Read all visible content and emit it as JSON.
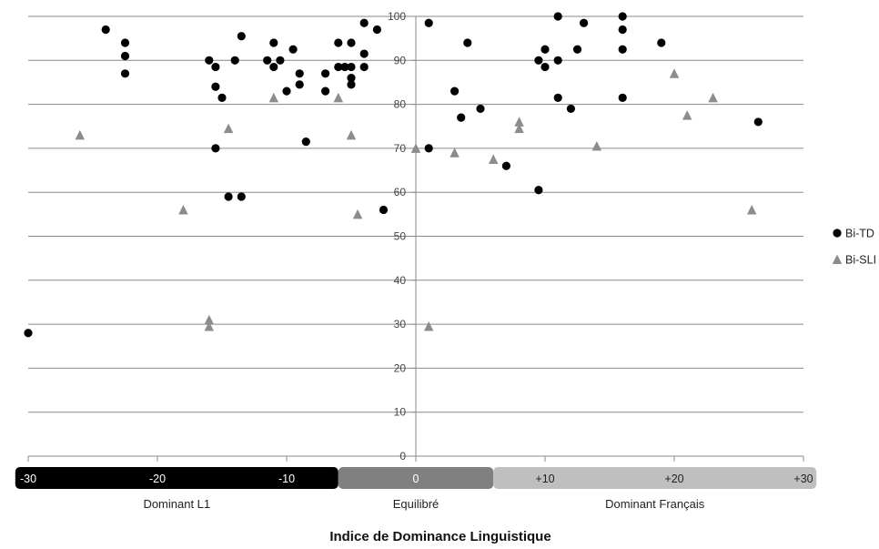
{
  "chart_data": {
    "type": "scatter",
    "title": "",
    "xlabel": "Indice de Dominance Linguistique",
    "ylabel": "",
    "xlim": [
      -30,
      30
    ],
    "ylim": [
      0,
      100
    ],
    "grid": true,
    "legend_position": "right",
    "x_ticks": [
      "-30",
      "-20",
      "-10",
      "0",
      "+10",
      "+20",
      "+30"
    ],
    "y_ticks": [
      "0",
      "10",
      "20",
      "30",
      "40",
      "50",
      "60",
      "70",
      "80",
      "90",
      "100"
    ],
    "zones": [
      {
        "label": "Dominant L1",
        "from": -31,
        "to": -6,
        "color": "#000000"
      },
      {
        "label": "Equilibré",
        "from": -6,
        "to": 6,
        "color": "#808080"
      },
      {
        "label": "Dominant Français",
        "from": 6,
        "to": 31,
        "color": "#bfbfbf"
      }
    ],
    "series": [
      {
        "name": "Bi-TD",
        "marker": "circle",
        "color": "#000000",
        "points": [
          [
            -30,
            28
          ],
          [
            -24,
            97
          ],
          [
            -22.5,
            94
          ],
          [
            -22.5,
            91
          ],
          [
            -22.5,
            87
          ],
          [
            -16,
            90
          ],
          [
            -15.5,
            88.5
          ],
          [
            -15.5,
            84
          ],
          [
            -15,
            81.5
          ],
          [
            -15.5,
            70
          ],
          [
            -14.5,
            59
          ],
          [
            -14,
            90
          ],
          [
            -13.5,
            95.5
          ],
          [
            -13.5,
            59
          ],
          [
            -11.5,
            90
          ],
          [
            -11,
            94
          ],
          [
            -11,
            88.5
          ],
          [
            -10.5,
            90
          ],
          [
            -10,
            83
          ],
          [
            -9.5,
            92.5
          ],
          [
            -9,
            87
          ],
          [
            -9,
            84.5
          ],
          [
            -8.5,
            71.5
          ],
          [
            -7,
            87
          ],
          [
            -7,
            83
          ],
          [
            -6,
            94
          ],
          [
            -6,
            88.5
          ],
          [
            -5.5,
            88.5
          ],
          [
            -5,
            88.5
          ],
          [
            -5,
            94
          ],
          [
            -5,
            86
          ],
          [
            -5,
            84.5
          ],
          [
            -4,
            98.5
          ],
          [
            -4,
            91.5
          ],
          [
            -4,
            88.5
          ],
          [
            -3,
            97
          ],
          [
            -2.5,
            56
          ],
          [
            1,
            98.5
          ],
          [
            1,
            70
          ],
          [
            3,
            83
          ],
          [
            3.5,
            77
          ],
          [
            4,
            94
          ],
          [
            5,
            79
          ],
          [
            7,
            66
          ],
          [
            9.5,
            90
          ],
          [
            9.5,
            60.5
          ],
          [
            10,
            92.5
          ],
          [
            10,
            88.5
          ],
          [
            11,
            100
          ],
          [
            11,
            90
          ],
          [
            11,
            81.5
          ],
          [
            12,
            79
          ],
          [
            12.5,
            92.5
          ],
          [
            13,
            98.5
          ],
          [
            16,
            100
          ],
          [
            16,
            97
          ],
          [
            16,
            92.5
          ],
          [
            16,
            81.5
          ],
          [
            19,
            94
          ],
          [
            26.5,
            76
          ]
        ]
      },
      {
        "name": "Bi-SLI",
        "marker": "triangle",
        "color": "#8c8c8c",
        "points": [
          [
            -26,
            73
          ],
          [
            -18,
            56
          ],
          [
            -16,
            31
          ],
          [
            -16,
            29.5
          ],
          [
            -14.5,
            74.5
          ],
          [
            -11,
            81.5
          ],
          [
            -6,
            81.5
          ],
          [
            -5,
            73
          ],
          [
            -4.5,
            55
          ],
          [
            0,
            70
          ],
          [
            1,
            29.5
          ],
          [
            3,
            69
          ],
          [
            6,
            67.5
          ],
          [
            8,
            76
          ],
          [
            8,
            74.5
          ],
          [
            14,
            70.5
          ],
          [
            20,
            87
          ],
          [
            21,
            77.5
          ],
          [
            23,
            81.5
          ],
          [
            26,
            56
          ]
        ]
      }
    ]
  }
}
